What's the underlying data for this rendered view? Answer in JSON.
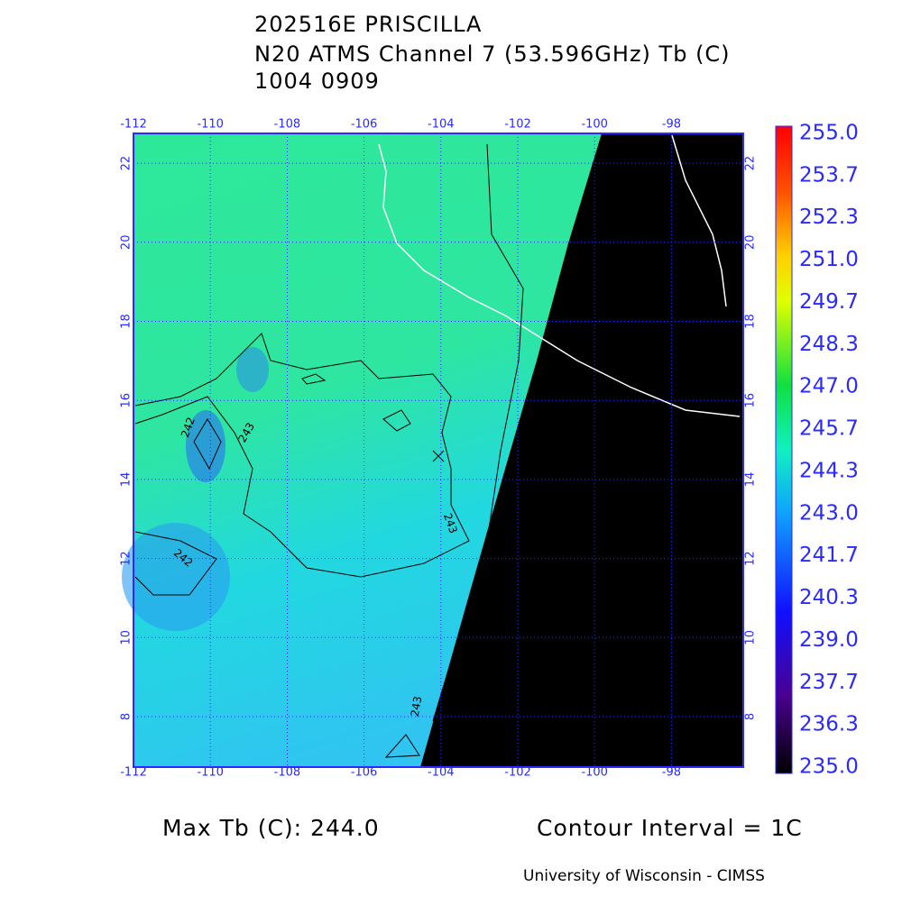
{
  "header": {
    "title": "202516E PRISCILLA",
    "subtitle": "N20 ATMS Channel 7 (53.596GHz) Tb (C)",
    "time": "1004 0909"
  },
  "map": {
    "lon_ticks": [
      "-112",
      "-110",
      "-108",
      "-106",
      "-104",
      "-102",
      "-100",
      "-98"
    ],
    "lat_ticks": [
      "8",
      "10",
      "12",
      "14",
      "16",
      "18",
      "20",
      "22"
    ],
    "contour_labels": [
      "242",
      "243",
      "242",
      "243",
      "243"
    ]
  },
  "colorbar": {
    "labels": [
      "255.0",
      "253.7",
      "252.3",
      "251.0",
      "249.7",
      "248.3",
      "247.0",
      "245.7",
      "244.3",
      "243.0",
      "241.7",
      "240.3",
      "239.0",
      "237.7",
      "236.3",
      "235.0"
    ]
  },
  "footer": {
    "max_tb": "Max Tb (C): 244.0",
    "contour_interval": "Contour Interval = 1C",
    "credit": "University of Wisconsin - CIMSS"
  }
}
